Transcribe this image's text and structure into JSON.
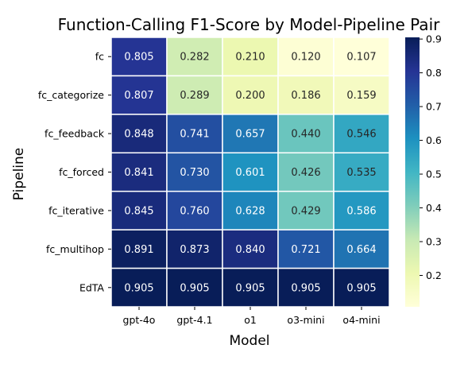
{
  "chart_data": {
    "type": "heatmap",
    "title": "Function-Calling F1-Score by Model-Pipeline Pair",
    "xlabel": "Model",
    "ylabel": "Pipeline",
    "x_categories": [
      "gpt-4o",
      "gpt-4.1",
      "o1",
      "o3-mini",
      "o4-mini"
    ],
    "y_categories": [
      "fc",
      "fc_categorize",
      "fc_feedback",
      "fc_forced",
      "fc_iterative",
      "fc_multihop",
      "EdTA"
    ],
    "values": [
      [
        0.805,
        0.282,
        0.21,
        0.12,
        0.107
      ],
      [
        0.807,
        0.289,
        0.2,
        0.186,
        0.159
      ],
      [
        0.848,
        0.741,
        0.657,
        0.44,
        0.546
      ],
      [
        0.841,
        0.73,
        0.601,
        0.426,
        0.535
      ],
      [
        0.845,
        0.76,
        0.628,
        0.429,
        0.586
      ],
      [
        0.891,
        0.873,
        0.84,
        0.721,
        0.664
      ],
      [
        0.905,
        0.905,
        0.905,
        0.905,
        0.905
      ]
    ],
    "cell_labels": [
      [
        "0.805",
        "0.282",
        "0.210",
        "0.120",
        "0.107"
      ],
      [
        "0.807",
        "0.289",
        "0.200",
        "0.186",
        "0.159"
      ],
      [
        "0.848",
        "0.741",
        "0.657",
        "0.440",
        "0.546"
      ],
      [
        "0.841",
        "0.730",
        "0.601",
        "0.426",
        "0.535"
      ],
      [
        "0.845",
        "0.760",
        "0.628",
        "0.429",
        "0.586"
      ],
      [
        "0.891",
        "0.873",
        "0.840",
        "0.721",
        "0.664"
      ],
      [
        "0.905",
        "0.905",
        "0.905",
        "0.905",
        "0.905"
      ]
    ],
    "colormap": "YlGnBu",
    "vmin": 0.107,
    "vmax": 0.905,
    "colorbar_ticks": [
      0.2,
      0.3,
      0.4,
      0.5,
      0.6,
      0.7,
      0.8,
      0.9
    ],
    "colorbar_tick_labels": [
      "0.2",
      "0.3",
      "0.4",
      "0.5",
      "0.6",
      "0.7",
      "0.8",
      "0.9"
    ]
  }
}
